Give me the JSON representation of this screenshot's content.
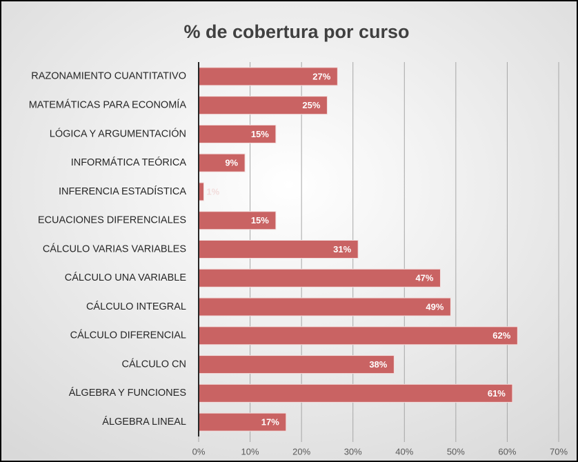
{
  "chart_data": {
    "type": "bar",
    "orientation": "horizontal",
    "title": "% de cobertura por curso",
    "categories": [
      "RAZONAMIENTO CUANTITATIVO",
      "MATEMÁTICAS PARA ECONOMÍA",
      "LÓGICA Y ARGUMENTACIÓN",
      "INFORMÁTICA TEÓRICA",
      "INFERENCIA ESTADÍSTICA",
      "ECUACIONES DIFERENCIALES",
      "CÁLCULO VARIAS VARIABLES",
      "CÁLCULO UNA VARIABLE",
      "CÁLCULO INTEGRAL",
      "CÁLCULO DIFERENCIAL",
      "CÁLCULO CN",
      "ÁLGEBRA Y FUNCIONES",
      "ÁLGEBRA LINEAL"
    ],
    "values": [
      27,
      25,
      15,
      9,
      1,
      15,
      31,
      47,
      49,
      62,
      38,
      61,
      17
    ],
    "value_labels": [
      "27%",
      "25%",
      "15%",
      "9%",
      "1%",
      "15%",
      "31%",
      "47%",
      "49%",
      "62%",
      "38%",
      "61%",
      "17%"
    ],
    "color": "#c96363",
    "xlim": [
      0,
      70
    ],
    "xticks": [
      {
        "value": 0,
        "label": "0%"
      },
      {
        "value": 10,
        "label": "10%"
      },
      {
        "value": 20,
        "label": "20%"
      },
      {
        "value": 30,
        "label": "30%"
      },
      {
        "value": 40,
        "label": "40%"
      },
      {
        "value": 50,
        "label": "50%"
      },
      {
        "value": 60,
        "label": "60%"
      },
      {
        "value": 70,
        "label": "70%"
      }
    ],
    "grid": true
  }
}
